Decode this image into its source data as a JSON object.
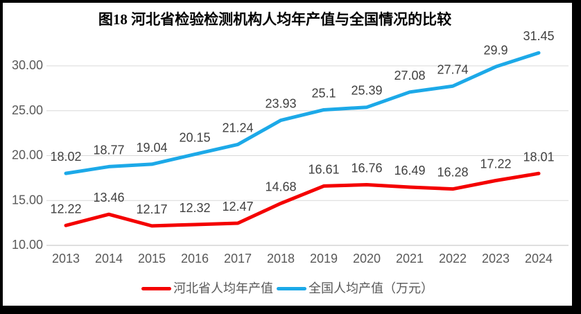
{
  "chart_data": {
    "type": "line",
    "title": "图18  河北省检验检测机构人均年产值与全国情况的比较",
    "categories": [
      "2013",
      "2014",
      "2015",
      "2016",
      "2017",
      "2018",
      "2019",
      "2020",
      "2021",
      "2022",
      "2023",
      "2024"
    ],
    "series": [
      {
        "id": "hebei",
        "name": "河北省人均年产值",
        "color": "#F40000",
        "values": [
          12.22,
          13.46,
          12.17,
          12.32,
          12.47,
          14.68,
          16.61,
          16.76,
          16.49,
          16.28,
          17.22,
          18.01
        ]
      },
      {
        "id": "national",
        "name": "全国人均产值（万元）",
        "color": "#1CA9E8",
        "values": [
          18.02,
          18.77,
          19.04,
          20.15,
          21.24,
          23.93,
          25.1,
          25.39,
          27.08,
          27.74,
          29.9,
          31.45
        ]
      }
    ],
    "y_ticks": [
      {
        "value": 10,
        "label": "10.00"
      },
      {
        "value": 15,
        "label": "15.00"
      },
      {
        "value": 20,
        "label": "20.00"
      },
      {
        "value": 25,
        "label": "25.00"
      },
      {
        "value": 30,
        "label": "30.00"
      }
    ],
    "ylim": [
      10,
      32.2
    ],
    "xlabel": "",
    "ylabel": "",
    "grid": true,
    "legend_position": "bottom",
    "data_labels": true
  },
  "colors": {
    "background": "#FFFFFF",
    "border": "#000000",
    "gridline": "#D9D9D9",
    "axis_line": "#BFBFBF",
    "tick_label": "#595959",
    "data_label": "#404040",
    "legend_text": "#595959",
    "title_text": "#000000"
  }
}
